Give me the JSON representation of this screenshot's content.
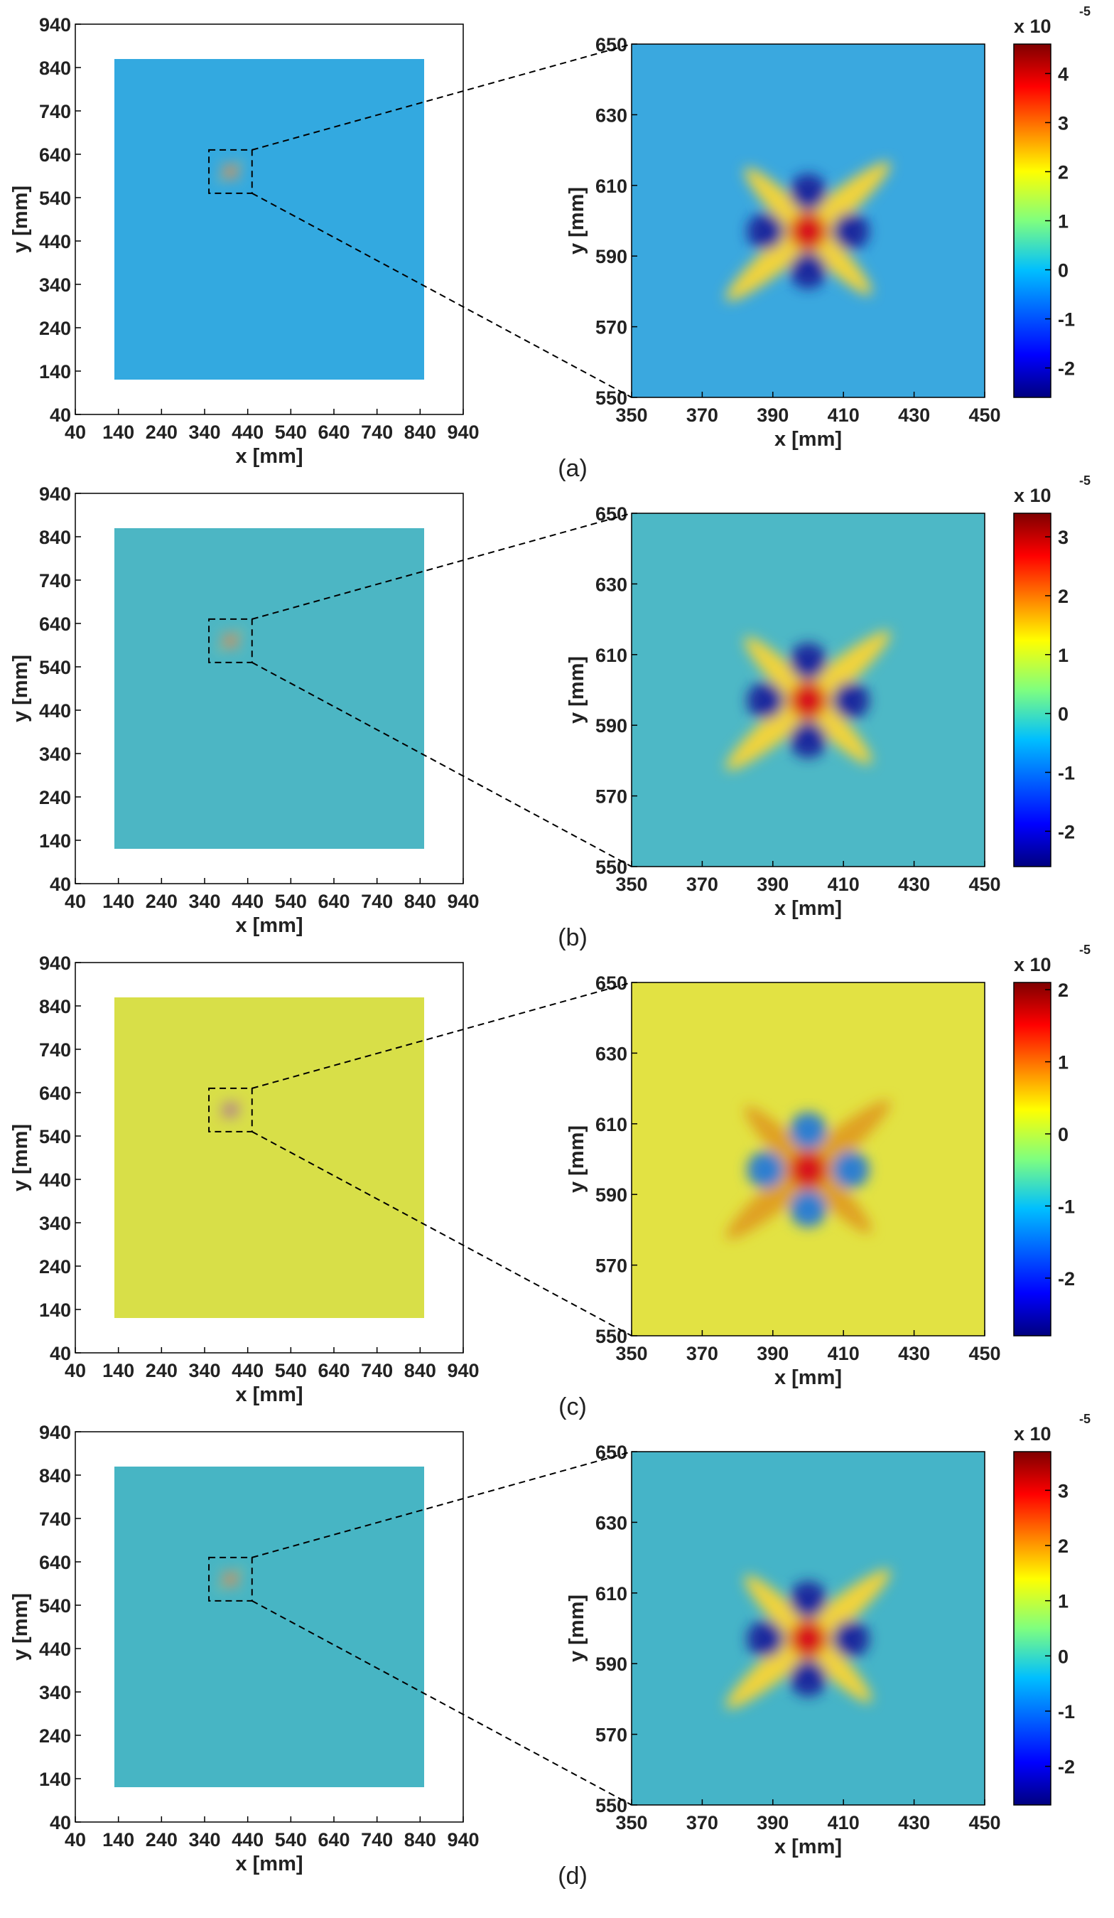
{
  "chart_data": [
    {
      "type": "heatmap",
      "color": "#33a9e0",
      "xlabel": "x [mm]",
      "ylabel": "y [mm]",
      "xlim": [
        40,
        940
      ],
      "ylim": [
        40,
        940
      ],
      "xticks": [
        40,
        140,
        240,
        340,
        440,
        540,
        640,
        740,
        840,
        940
      ],
      "yticks": [
        40,
        140,
        240,
        340,
        440,
        540,
        640,
        740,
        840,
        940
      ]
    },
    {
      "type": "heatmap",
      "color": "#3aa8df",
      "xlabel": "x [mm]",
      "ylabel": "y [mm]",
      "xlim": [
        350,
        450
      ],
      "ylim": [
        550,
        650
      ],
      "xticks": [
        350,
        370,
        390,
        410,
        430,
        450
      ],
      "yticks": [
        550,
        570,
        590,
        610,
        630,
        650
      ],
      "panel_label": "(a)",
      "colorbar": {
        "lim": [
          -2.6,
          4.6
        ],
        "ticks": [
          -2,
          -1,
          0,
          1,
          2,
          3,
          4
        ],
        "label": "x 10",
        "exponent": "-5"
      }
    },
    {
      "type": "heatmap",
      "color": "#4cb6c4",
      "xlabel": "x [mm]",
      "ylabel": "y [mm]",
      "xlim": [
        40,
        940
      ],
      "ylim": [
        40,
        940
      ],
      "xticks": [
        40,
        140,
        240,
        340,
        440,
        540,
        640,
        740,
        840,
        940
      ],
      "yticks": [
        40,
        140,
        240,
        340,
        440,
        540,
        640,
        740,
        840,
        940
      ]
    },
    {
      "type": "heatmap",
      "color": "#4db8c6",
      "xlabel": "x [mm]",
      "ylabel": "y [mm]",
      "xlim": [
        350,
        450
      ],
      "ylim": [
        550,
        650
      ],
      "xticks": [
        350,
        370,
        390,
        410,
        430,
        450
      ],
      "yticks": [
        550,
        570,
        590,
        610,
        630,
        650
      ],
      "panel_label": "(b)",
      "colorbar": {
        "lim": [
          -2.6,
          3.4
        ],
        "ticks": [
          -2,
          -1,
          0,
          1,
          2,
          3
        ],
        "label": "x 10",
        "exponent": "-5"
      }
    },
    {
      "type": "heatmap",
      "color": "#d8df48",
      "xlabel": "x [mm]",
      "ylabel": "y [mm]",
      "xlim": [
        40,
        940
      ],
      "ylim": [
        40,
        940
      ],
      "xticks": [
        40,
        140,
        240,
        340,
        440,
        540,
        640,
        740,
        840,
        940
      ],
      "yticks": [
        40,
        140,
        240,
        340,
        440,
        540,
        640,
        740,
        840,
        940
      ]
    },
    {
      "type": "heatmap",
      "color": "#e2e243",
      "xlabel": "x [mm]",
      "ylabel": "y [mm]",
      "xlim": [
        350,
        450
      ],
      "ylim": [
        550,
        650
      ],
      "xticks": [
        350,
        370,
        390,
        410,
        430,
        450
      ],
      "yticks": [
        550,
        570,
        590,
        610,
        630,
        650
      ],
      "panel_label": "(c)",
      "colorbar": {
        "lim": [
          -2.8,
          2.1
        ],
        "ticks": [
          -2,
          -1,
          0,
          1,
          2
        ],
        "label": "x 10",
        "exponent": "-5"
      }
    },
    {
      "type": "heatmap",
      "color": "#47b5c4",
      "xlabel": "x [mm]",
      "ylabel": "y [mm]",
      "xlim": [
        40,
        940
      ],
      "ylim": [
        40,
        940
      ],
      "xticks": [
        40,
        140,
        240,
        340,
        440,
        540,
        640,
        740,
        840,
        940
      ],
      "yticks": [
        40,
        140,
        240,
        340,
        440,
        540,
        640,
        740,
        840,
        940
      ]
    },
    {
      "type": "heatmap",
      "color": "#45b4c8",
      "xlabel": "x [mm]",
      "ylabel": "y [mm]",
      "xlim": [
        350,
        450
      ],
      "ylim": [
        550,
        650
      ],
      "xticks": [
        350,
        370,
        390,
        410,
        430,
        450
      ],
      "yticks": [
        550,
        570,
        590,
        610,
        630,
        650
      ],
      "panel_label": "(d)",
      "colorbar": {
        "lim": [
          -2.7,
          3.7
        ],
        "ticks": [
          -2,
          -1,
          0,
          1,
          2,
          3
        ],
        "label": "x 10",
        "exponent": "-5"
      }
    }
  ]
}
